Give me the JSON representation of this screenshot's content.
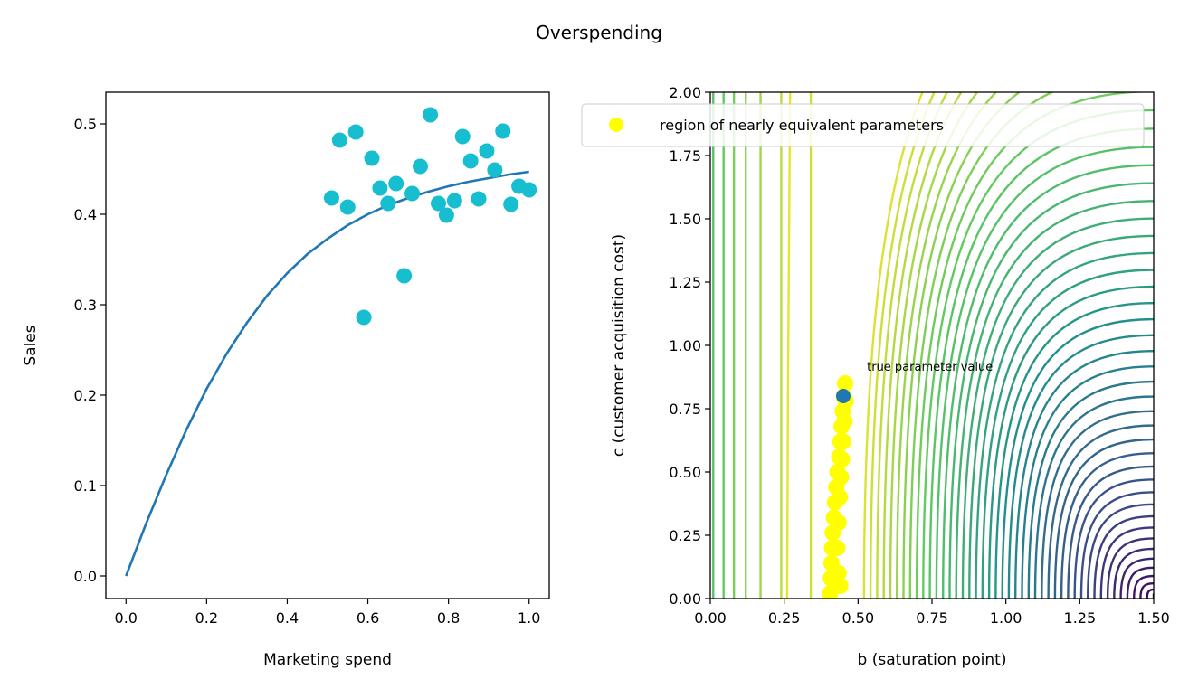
{
  "title": "Overspending",
  "chart_data": [
    {
      "type": "scatter",
      "xlabel": "Marketing spend",
      "ylabel": "Sales",
      "xlim": [
        -0.05,
        1.05
      ],
      "ylim": [
        -0.025,
        0.535
      ],
      "xticks": [
        "0.0",
        "0.2",
        "0.4",
        "0.6",
        "0.8",
        "1.0"
      ],
      "xtick_values": [
        0,
        0.2,
        0.4,
        0.6,
        0.8,
        1.0
      ],
      "yticks": [
        "0.0",
        "0.1",
        "0.2",
        "0.3",
        "0.4",
        "0.5"
      ],
      "ytick_values": [
        0,
        0.1,
        0.2,
        0.3,
        0.4,
        0.5
      ],
      "grid": false,
      "curve": {
        "color": "#1f77b4",
        "x": [
          0.0,
          0.05,
          0.1,
          0.15,
          0.2,
          0.25,
          0.3,
          0.35,
          0.4,
          0.45,
          0.5,
          0.55,
          0.6,
          0.65,
          0.7,
          0.75,
          0.8,
          0.85,
          0.9,
          0.95,
          1.0
        ],
        "y": [
          0.0,
          0.058,
          0.112,
          0.162,
          0.207,
          0.246,
          0.28,
          0.31,
          0.335,
          0.356,
          0.373,
          0.388,
          0.4,
          0.41,
          0.418,
          0.425,
          0.431,
          0.436,
          0.44,
          0.444,
          0.447
        ]
      },
      "points": {
        "color": "#17becf",
        "x": [
          0.51,
          0.53,
          0.55,
          0.57,
          0.59,
          0.61,
          0.63,
          0.65,
          0.67,
          0.69,
          0.71,
          0.73,
          0.755,
          0.775,
          0.795,
          0.815,
          0.835,
          0.855,
          0.875,
          0.895,
          0.915,
          0.935,
          0.955,
          0.975,
          1.0
        ],
        "y": [
          0.418,
          0.482,
          0.408,
          0.491,
          0.286,
          0.462,
          0.429,
          0.412,
          0.434,
          0.332,
          0.423,
          0.453,
          0.51,
          0.412,
          0.399,
          0.415,
          0.486,
          0.459,
          0.417,
          0.47,
          0.449,
          0.492,
          0.411,
          0.431,
          0.427
        ]
      }
    },
    {
      "type": "contour",
      "xlabel": "b (saturation point)",
      "ylabel": "c (customer acquisition cost)",
      "xlim": [
        0.0,
        1.5
      ],
      "ylim": [
        0.0,
        2.0
      ],
      "xticks": [
        "0.00",
        "0.25",
        "0.50",
        "0.75",
        "1.00",
        "1.25",
        "1.50"
      ],
      "xtick_values": [
        0,
        0.25,
        0.5,
        0.75,
        1.0,
        1.25,
        1.5
      ],
      "yticks": [
        "0.00",
        "0.25",
        "0.50",
        "0.75",
        "1.00",
        "1.25",
        "1.50",
        "1.75",
        "2.00"
      ],
      "ytick_values": [
        0,
        0.25,
        0.5,
        0.75,
        1.0,
        1.25,
        1.5,
        1.75,
        2.0
      ],
      "colormap": "viridis",
      "level_count": 45,
      "grid": false,
      "legend": {
        "label": "region of nearly equivalent parameters",
        "marker_color": "#ffff00",
        "placement": "upper-right"
      },
      "region": {
        "color": "#ffff00",
        "x": [
          0.405,
          0.408,
          0.41,
          0.412,
          0.414,
          0.418,
          0.422,
          0.426,
          0.43,
          0.436,
          0.44,
          0.444,
          0.448,
          0.452,
          0.456,
          0.458,
          0.454,
          0.45,
          0.446,
          0.442,
          0.438,
          0.434,
          0.43,
          0.434,
          0.44
        ],
        "y": [
          0.02,
          0.08,
          0.14,
          0.2,
          0.26,
          0.32,
          0.38,
          0.44,
          0.5,
          0.56,
          0.62,
          0.68,
          0.74,
          0.8,
          0.85,
          0.78,
          0.7,
          0.62,
          0.55,
          0.48,
          0.4,
          0.3,
          0.2,
          0.1,
          0.05
        ]
      },
      "true_value": {
        "x": 0.45,
        "y": 0.8,
        "color": "#1f77b4",
        "label": "true parameter value",
        "label_x": 0.53,
        "label_y": 0.9
      }
    }
  ]
}
